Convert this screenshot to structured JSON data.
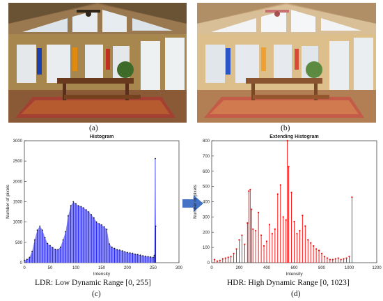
{
  "panels": {
    "a": {
      "caption": "(a)"
    },
    "b": {
      "caption": "(b)"
    },
    "c": {
      "caption": "(c)",
      "description": "LDR: Low Dynamic Range [0, 255]"
    },
    "d": {
      "caption": "(d)",
      "description": "HDR: High Dynamic Range [0, 1023]"
    }
  },
  "arrow": {
    "color": "#4472c4",
    "icon": "right-arrow-icon"
  },
  "chart_data": [
    {
      "type": "bar",
      "title": "Histogram",
      "xlabel": "Intensity",
      "ylabel": "Number of pixels",
      "xlim": [
        0,
        300
      ],
      "ylim": [
        0,
        3000
      ],
      "xticks": [
        0,
        50,
        100,
        150,
        200,
        250,
        300
      ],
      "yticks": [
        0,
        500,
        1000,
        1500,
        2000,
        2500,
        3000
      ],
      "color": "#0000ff",
      "fill": "#7b7bf5",
      "grid": false,
      "x": [
        0,
        5,
        10,
        15,
        20,
        25,
        30,
        35,
        40,
        45,
        50,
        55,
        60,
        65,
        70,
        75,
        80,
        85,
        90,
        95,
        100,
        105,
        110,
        115,
        120,
        125,
        130,
        135,
        140,
        145,
        150,
        155,
        160,
        165,
        170,
        175,
        180,
        185,
        190,
        195,
        200,
        205,
        210,
        215,
        220,
        225,
        230,
        235,
        240,
        245,
        250,
        252,
        254,
        255
      ],
      "values": [
        60,
        80,
        130,
        280,
        560,
        800,
        900,
        800,
        620,
        470,
        420,
        370,
        330,
        320,
        380,
        560,
        760,
        1150,
        1400,
        1500,
        1450,
        1400,
        1380,
        1350,
        1300,
        1250,
        1180,
        1100,
        1000,
        960,
        930,
        880,
        820,
        460,
        380,
        350,
        320,
        310,
        290,
        270,
        250,
        240,
        230,
        210,
        200,
        185,
        170,
        160,
        150,
        140,
        130,
        180,
        2560,
        900
      ]
    },
    {
      "type": "bar",
      "title": "Extending Histogram",
      "xlabel": "Intensity",
      "ylabel": "Number of pixels",
      "xlim": [
        0,
        1200
      ],
      "ylim": [
        0,
        800
      ],
      "xticks": [
        0,
        200,
        400,
        600,
        800,
        1000,
        1200
      ],
      "yticks": [
        0,
        100,
        200,
        300,
        400,
        500,
        600,
        700,
        800
      ],
      "color": "#ff0000",
      "grid": false,
      "x": [
        20,
        40,
        60,
        80,
        100,
        120,
        140,
        160,
        180,
        200,
        220,
        240,
        260,
        270,
        280,
        290,
        300,
        320,
        340,
        360,
        380,
        400,
        420,
        440,
        460,
        480,
        500,
        520,
        540,
        550,
        560,
        580,
        600,
        620,
        640,
        660,
        680,
        700,
        720,
        740,
        760,
        780,
        800,
        820,
        840,
        860,
        880,
        900,
        920,
        940,
        960,
        980,
        1000,
        1020
      ],
      "values": [
        20,
        10,
        15,
        25,
        30,
        35,
        40,
        60,
        90,
        150,
        180,
        120,
        260,
        470,
        480,
        350,
        220,
        210,
        330,
        180,
        110,
        140,
        250,
        190,
        220,
        450,
        510,
        300,
        280,
        800,
        630,
        460,
        270,
        190,
        210,
        310,
        240,
        150,
        130,
        110,
        90,
        80,
        60,
        40,
        30,
        20,
        20,
        25,
        30,
        20,
        25,
        30,
        40,
        430
      ]
    }
  ]
}
